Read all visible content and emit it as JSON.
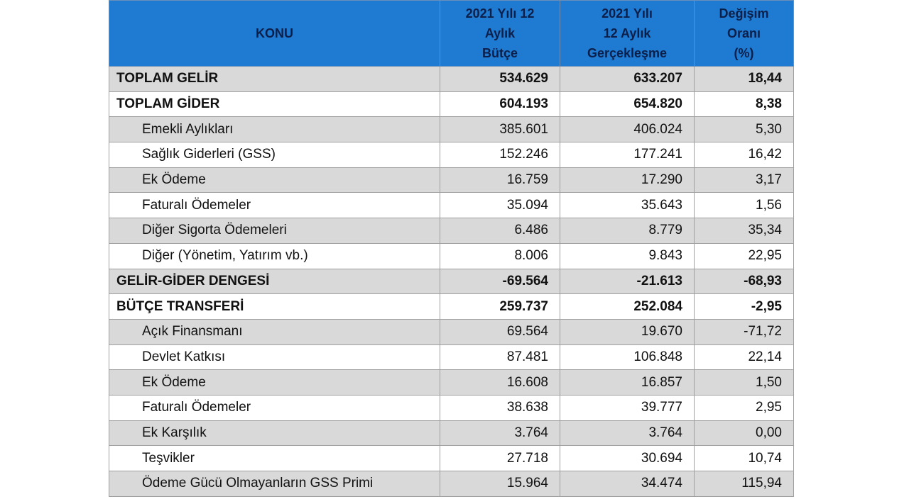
{
  "table": {
    "header": [
      [
        "KONU"
      ],
      [
        "2021 Yılı 12",
        "Aylık",
        "Bütçe"
      ],
      [
        "2021 Yılı",
        "12 Aylık",
        "Gerçekleşme"
      ],
      [
        "Değişim",
        "Oranı",
        "(%)"
      ]
    ],
    "rows": [
      {
        "bold": true,
        "cells": [
          "TOPLAM GELİR",
          "534.629",
          "633.207",
          "18,44"
        ]
      },
      {
        "bold": true,
        "cells": [
          "TOPLAM GİDER",
          "604.193",
          "654.820",
          "8,38"
        ]
      },
      {
        "bold": false,
        "cells": [
          "Emekli Aylıkları",
          "385.601",
          "406.024",
          "5,30"
        ]
      },
      {
        "bold": false,
        "cells": [
          "Sağlık Giderleri (GSS)",
          "152.246",
          "177.241",
          "16,42"
        ]
      },
      {
        "bold": false,
        "cells": [
          "Ek Ödeme",
          "16.759",
          "17.290",
          "3,17"
        ]
      },
      {
        "bold": false,
        "cells": [
          "Faturalı Ödemeler",
          "35.094",
          "35.643",
          "1,56"
        ]
      },
      {
        "bold": false,
        "cells": [
          "Diğer Sigorta Ödemeleri",
          "6.486",
          "8.779",
          "35,34"
        ]
      },
      {
        "bold": false,
        "cells": [
          "Diğer (Yönetim, Yatırım vb.)",
          "8.006",
          "9.843",
          "22,95"
        ]
      },
      {
        "bold": true,
        "cells": [
          "GELİR-GİDER DENGESİ",
          "-69.564",
          "-21.613",
          "-68,93"
        ]
      },
      {
        "bold": true,
        "cells": [
          "BÜTÇE TRANSFERİ",
          "259.737",
          "252.084",
          "-2,95"
        ]
      },
      {
        "bold": false,
        "cells": [
          "Açık Finansmanı",
          "69.564",
          "19.670",
          "-71,72"
        ]
      },
      {
        "bold": false,
        "cells": [
          "Devlet Katkısı",
          "87.481",
          "106.848",
          "22,14"
        ]
      },
      {
        "bold": false,
        "cells": [
          "Ek Ödeme",
          "16.608",
          "16.857",
          "1,50"
        ]
      },
      {
        "bold": false,
        "cells": [
          "Faturalı Ödemeler",
          "38.638",
          "39.777",
          "2,95"
        ]
      },
      {
        "bold": false,
        "cells": [
          "Ek Karşılık",
          "3.764",
          "3.764",
          "0,00"
        ]
      },
      {
        "bold": false,
        "cells": [
          "Teşvikler",
          "27.718",
          "30.694",
          "10,74"
        ]
      },
      {
        "bold": false,
        "cells": [
          "Ödeme Gücü Olmayanların GSS Primi",
          "15.964",
          "34.474",
          "115,94"
        ]
      }
    ]
  }
}
